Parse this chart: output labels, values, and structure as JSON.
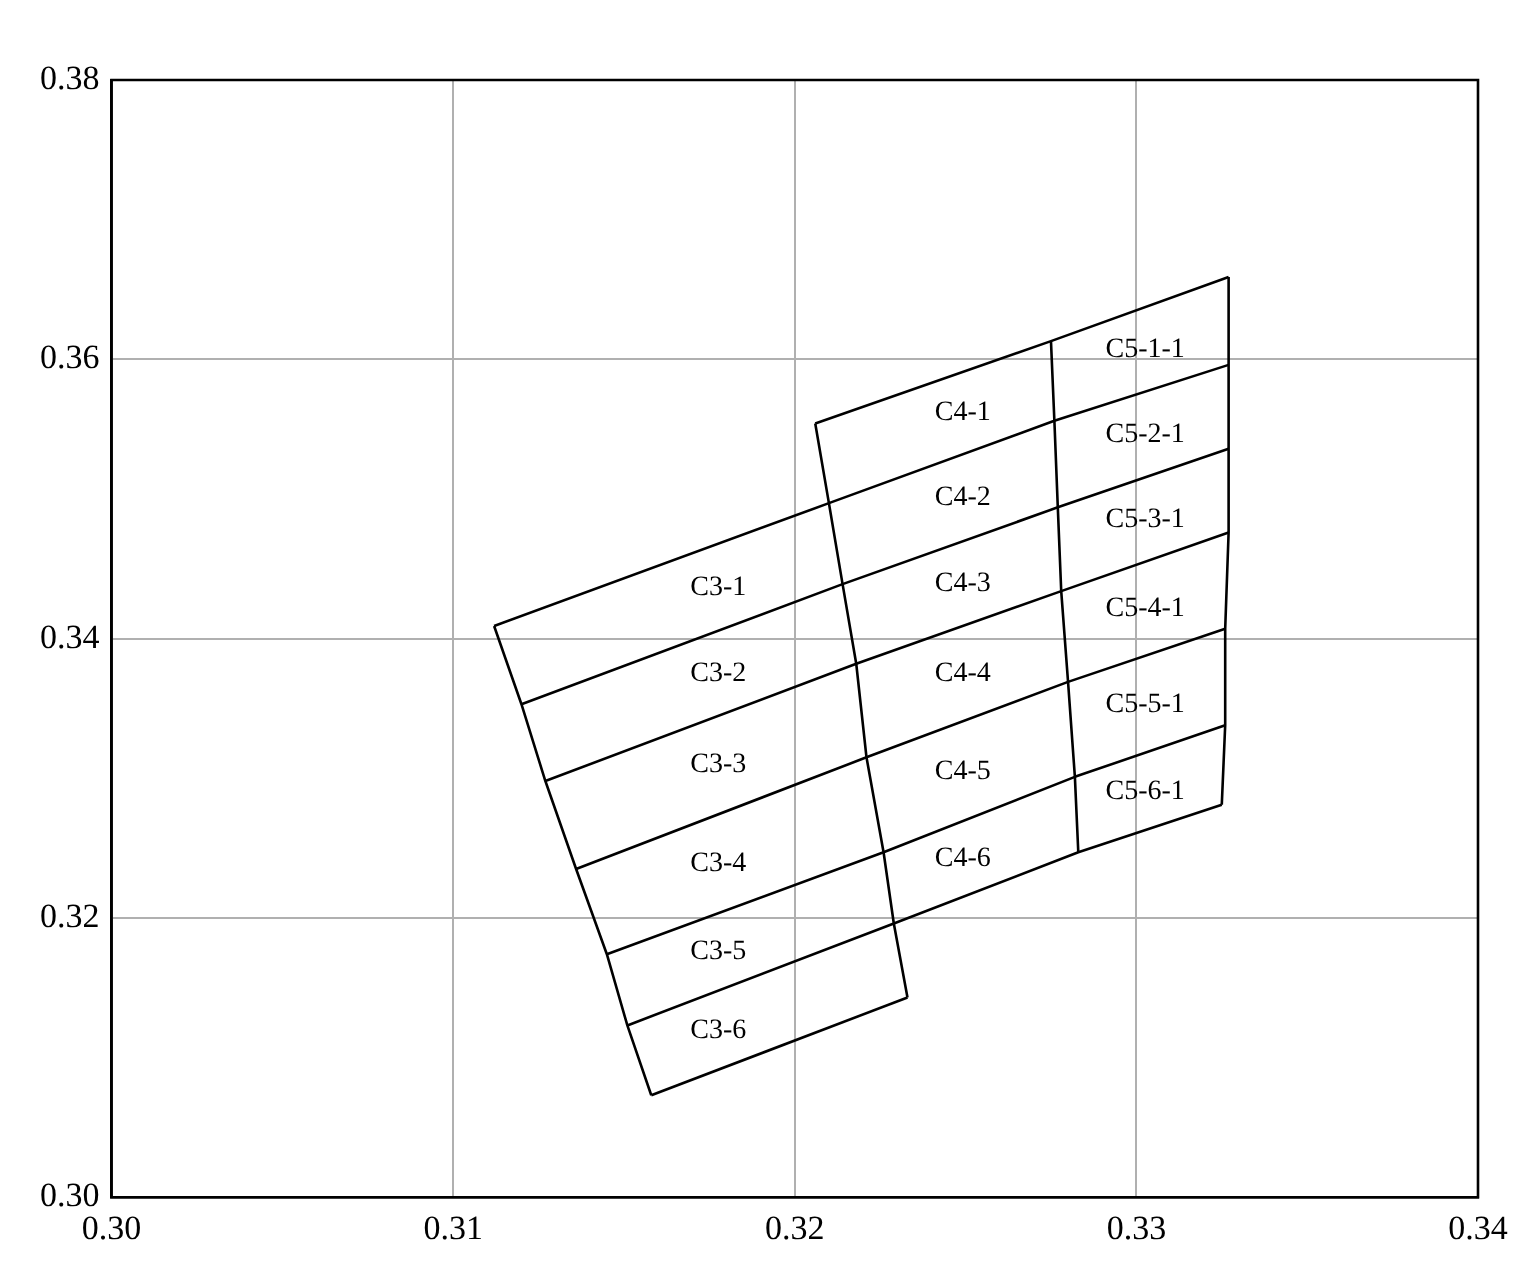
{
  "chart_data": {
    "type": "line",
    "xlim": [
      0.3,
      0.34
    ],
    "ylim": [
      0.3,
      0.38
    ],
    "xticks": [
      {
        "value": 0.3,
        "label": "0.30"
      },
      {
        "value": 0.31,
        "label": "0.31"
      },
      {
        "value": 0.32,
        "label": "0.32"
      },
      {
        "value": 0.33,
        "label": "0.33"
      },
      {
        "value": 0.34,
        "label": "0.34"
      }
    ],
    "yticks": [
      {
        "value": 0.3,
        "label": "0.30"
      },
      {
        "value": 0.32,
        "label": "0.32"
      },
      {
        "value": 0.34,
        "label": "0.34"
      },
      {
        "value": 0.36,
        "label": "0.36"
      },
      {
        "value": 0.38,
        "label": "0.38"
      }
    ],
    "grid": true,
    "legend": false,
    "marker": "none",
    "line_style": "solid",
    "series": [
      {
        "color": "#000000",
        "x": [
          0.3206,
          0.3275,
          0.3327
        ],
        "values": [
          0.3554,
          0.3613,
          0.3659
        ]
      },
      {
        "color": "#000000",
        "x": [
          0.3112,
          0.321,
          0.3276,
          0.3327
        ],
        "values": [
          0.3409,
          0.3497,
          0.3556,
          0.3596
        ]
      },
      {
        "color": "#000000",
        "x": [
          0.312,
          0.3214,
          0.3277,
          0.3327
        ],
        "values": [
          0.3353,
          0.3439,
          0.3494,
          0.3536
        ]
      },
      {
        "color": "#000000",
        "x": [
          0.3127,
          0.3218,
          0.3278,
          0.3327
        ],
        "values": [
          0.3298,
          0.3382,
          0.3434,
          0.3476
        ]
      },
      {
        "color": "#000000",
        "x": [
          0.3136,
          0.3221,
          0.328,
          0.3326
        ],
        "values": [
          0.3235,
          0.3315,
          0.3369,
          0.3407
        ]
      },
      {
        "color": "#000000",
        "x": [
          0.3145,
          0.3226,
          0.3282,
          0.3326
        ],
        "values": [
          0.3174,
          0.3247,
          0.3301,
          0.3338
        ]
      },
      {
        "color": "#000000",
        "x": [
          0.3151,
          0.3229,
          0.3283,
          0.3325
        ],
        "values": [
          0.3123,
          0.3196,
          0.3247,
          0.3281
        ]
      },
      {
        "color": "#000000",
        "x": [
          0.3158,
          0.3233
        ],
        "values": [
          0.3073,
          0.3143
        ]
      },
      {
        "color": "#000000",
        "x": [
          0.3112,
          0.312,
          0.3127,
          0.3136,
          0.3145,
          0.3151,
          0.3158
        ],
        "values": [
          0.3409,
          0.3353,
          0.3298,
          0.3235,
          0.3174,
          0.3123,
          0.3073
        ]
      },
      {
        "color": "#000000",
        "x": [
          0.3206,
          0.321,
          0.3214,
          0.3218,
          0.3221,
          0.3226,
          0.3229,
          0.3233
        ],
        "values": [
          0.3554,
          0.3497,
          0.3439,
          0.3382,
          0.3315,
          0.3247,
          0.3196,
          0.3143
        ]
      },
      {
        "color": "#000000",
        "x": [
          0.3275,
          0.3276,
          0.3277,
          0.3278,
          0.328,
          0.3282,
          0.3283
        ],
        "values": [
          0.3613,
          0.3556,
          0.3494,
          0.3434,
          0.3369,
          0.3301,
          0.3247
        ]
      },
      {
        "color": "#000000",
        "x": [
          0.3325,
          0.3326,
          0.3326,
          0.3327,
          0.3327,
          0.3327,
          0.3327
        ],
        "values": [
          0.3281,
          0.3338,
          0.3407,
          0.3476,
          0.3536,
          0.3596,
          0.3659
        ]
      }
    ],
    "annotations": [
      "C3-1",
      "C3-2",
      "C3-3",
      "C3-4",
      "C3-5",
      "C3-6",
      "C4-1",
      "C4-2",
      "C4-3",
      "C4-4",
      "C4-5",
      "C4-6",
      "C5-1-1",
      "C5-2-1",
      "C5-3-1",
      "C5-4-1",
      "C5-5-1",
      "C5-6-1"
    ]
  }
}
